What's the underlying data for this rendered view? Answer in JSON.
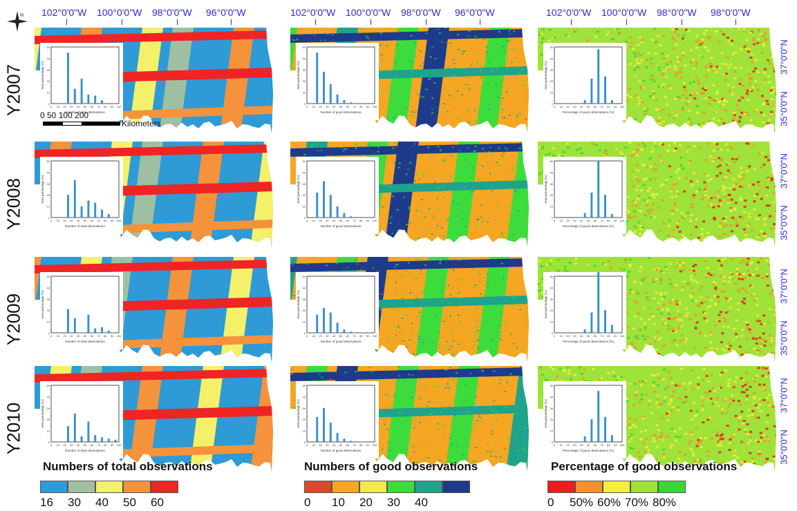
{
  "longitude_labels": [
    "102°0'0\"W",
    "100°0'0\"W",
    "98°0'0\"W",
    "96°0'0\"W"
  ],
  "longitude_labels_col3": [
    "102°0'0\"W",
    "100°0'0\"W",
    "98°0'0\"W",
    "98°0'0\"W"
  ],
  "latitude_labels": [
    "37°0'0\"N",
    "35°0'0\"N",
    "37°0'0\"N",
    "35°0'0\"N",
    "37°0'0\"N",
    "35°0'0\"N",
    "37°0'0\"N",
    "35°0'0\"N"
  ],
  "compass": {
    "north_label": "N"
  },
  "years": [
    "Y2007",
    "Y2008",
    "Y2009",
    "Y2010"
  ],
  "scale_bar": {
    "ticks": "0   50 100     200",
    "unit": "Kilometers"
  },
  "panels": [
    {
      "title": "Numbers of total observations",
      "legend_labels": [
        "16",
        "30",
        "40",
        "50",
        "60"
      ],
      "legend_colors": [
        "#2e9bd6",
        "#9fbfa3",
        "#f4f06a",
        "#f4933c",
        "#ef2424"
      ],
      "inset_xlabel": "Number of total observations",
      "inset_ylabel": "Area percentage (%)",
      "inset_xticks": [
        "0",
        "10",
        "20",
        "30",
        "40",
        "50",
        "60",
        "70",
        "80",
        "90",
        "100"
      ]
    },
    {
      "title": "Numbers of good observations",
      "legend_labels": [
        "0",
        "10",
        "20",
        "30",
        "40"
      ],
      "legend_colors": [
        "#d94a2c",
        "#f5a623",
        "#f2e94b",
        "#3ddc3d",
        "#1fa38a",
        "#1e3a8a"
      ],
      "inset_xlabel": "Number of good observations",
      "inset_ylabel": "Area percentage (%)",
      "inset_xticks": [
        "0",
        "10",
        "20",
        "30",
        "40",
        "50",
        "60",
        "70",
        "80",
        "90",
        "100"
      ]
    },
    {
      "title": "Percentage of good observations",
      "legend_labels": [
        "0",
        "50%",
        "60%",
        "70%",
        "80%"
      ],
      "legend_colors": [
        "#ee1c1c",
        "#f5902e",
        "#f5ee3a",
        "#9fe23a",
        "#39d63a"
      ],
      "inset_xlabel": "Percentage of good observations (%)",
      "inset_ylabel": "Area percentage (%)",
      "inset_xticks": [
        "0",
        "10",
        "20",
        "30",
        "40",
        "50",
        "60",
        "70",
        "80",
        "90",
        "100"
      ]
    }
  ],
  "histograms": {
    "total": [
      [
        0,
        0,
        45,
        13,
        22,
        8,
        7,
        3,
        0,
        0
      ],
      [
        0,
        0,
        20,
        33,
        10,
        15,
        13,
        7,
        3,
        0
      ],
      [
        0,
        0,
        21,
        13,
        0,
        16,
        4,
        5,
        2,
        0
      ],
      [
        0,
        0,
        14,
        25,
        5,
        18,
        6,
        4,
        3,
        2
      ]
    ],
    "good": [
      [
        0,
        45,
        28,
        17,
        8,
        3,
        1,
        0,
        0,
        0
      ],
      [
        0,
        22,
        32,
        20,
        10,
        4,
        1,
        0,
        0,
        0
      ],
      [
        0,
        16,
        22,
        18,
        9,
        3,
        1,
        0,
        0,
        0
      ],
      [
        0,
        22,
        30,
        17,
        8,
        3,
        1,
        0,
        0,
        0
      ]
    ],
    "percent": [
      [
        0,
        0,
        0,
        0,
        3,
        22,
        48,
        24,
        3,
        0
      ],
      [
        0,
        0,
        0,
        0,
        4,
        22,
        50,
        20,
        3,
        0
      ],
      [
        0,
        0,
        0,
        0,
        3,
        18,
        55,
        20,
        7,
        0
      ],
      [
        0,
        0,
        0,
        0,
        5,
        20,
        45,
        22,
        6,
        0
      ]
    ]
  }
}
